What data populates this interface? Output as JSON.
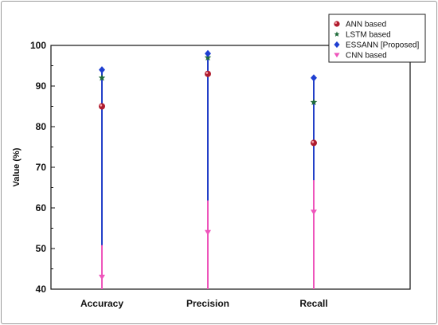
{
  "chart_data": {
    "type": "scatter",
    "categories": [
      "Accuracy",
      "Precision",
      "Recall"
    ],
    "ylabel": "Value (%)",
    "xlabel": "",
    "ylim": [
      40,
      100
    ],
    "yticks": [
      40,
      50,
      60,
      70,
      80,
      90,
      100
    ],
    "grid": false,
    "legend_position": "top-right",
    "series": [
      {
        "name": "ANN based",
        "marker": "circle",
        "color": "#b01c2e",
        "values": [
          85,
          93,
          76
        ]
      },
      {
        "name": "LSTM based",
        "marker": "star",
        "color": "#1f6b3a",
        "values": [
          92,
          97,
          86
        ]
      },
      {
        "name": "ESSANN [Proposed]",
        "marker": "diamond",
        "color": "#1f3fd1",
        "values": [
          94,
          98,
          92
        ]
      },
      {
        "name": "CNN based",
        "marker": "triangle-down",
        "color": "#ee55bb",
        "values": [
          43,
          54,
          59
        ]
      }
    ],
    "colors": {
      "upper_line": "#2340c8",
      "lower_line": "#ee55bb"
    }
  }
}
